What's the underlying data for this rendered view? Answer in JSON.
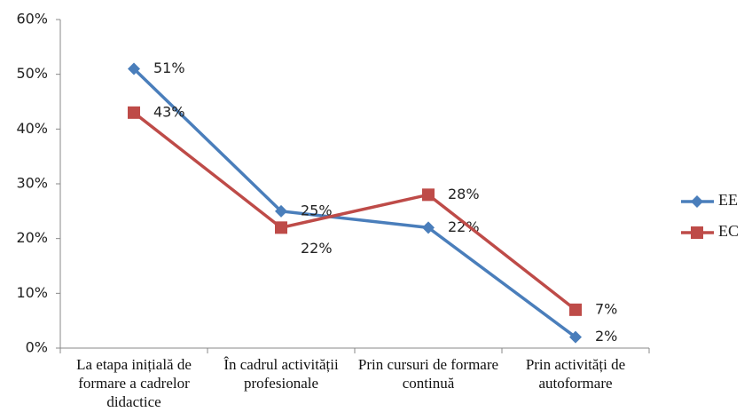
{
  "chart_data": {
    "type": "line",
    "categories": [
      "La etapa inițială de formare a cadrelor didactice",
      "În cadrul activității profesionale",
      "Prin cursuri de formare continuă",
      "Prin activități de autoformare"
    ],
    "series": [
      {
        "name": "EE",
        "color": "#4a7ebb",
        "marker": "diamond",
        "values": [
          51,
          25,
          22,
          2
        ],
        "value_labels": [
          "51%",
          "25%",
          "22%",
          "2%"
        ]
      },
      {
        "name": "EC",
        "color": "#be4b48",
        "marker": "square",
        "values": [
          43,
          22,
          28,
          7
        ],
        "value_labels": [
          "43%",
          "22%",
          "28%",
          "7%"
        ]
      }
    ],
    "ylim": [
      0,
      60
    ],
    "yticks": [
      {
        "value": 0,
        "label": "0%"
      },
      {
        "value": 10,
        "label": "10%"
      },
      {
        "value": 20,
        "label": "20%"
      },
      {
        "value": 30,
        "label": "30%"
      },
      {
        "value": 40,
        "label": "40%"
      },
      {
        "value": 50,
        "label": "50%"
      },
      {
        "value": 60,
        "label": "60%"
      }
    ],
    "grid": false,
    "legend": "right"
  }
}
